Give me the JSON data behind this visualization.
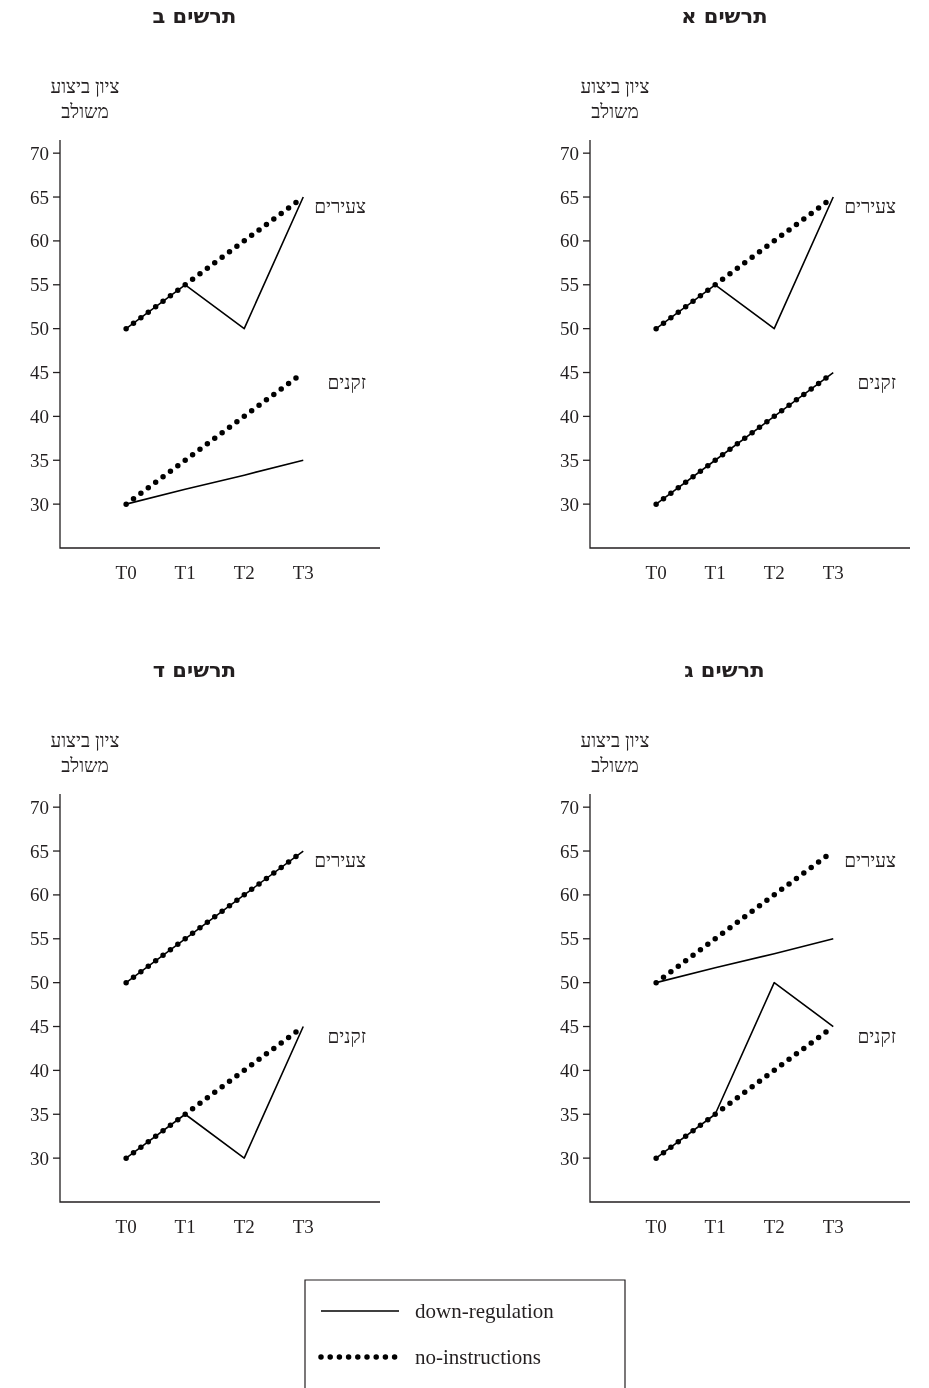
{
  "chart_data": [
    {
      "type": "line",
      "title": "תרשים א",
      "ylabel": "ציון ביצוע משולב",
      "categories": [
        "T0",
        "T1",
        "T2",
        "T3"
      ],
      "ylim": [
        25,
        71.5
      ],
      "yticks": [
        30,
        35,
        40,
        45,
        50,
        55,
        60,
        65,
        70
      ],
      "series": [
        {
          "color": "#000000",
          "line_style": "solid",
          "values": [
            50,
            55,
            50,
            65
          ]
        },
        {
          "color": "#000000",
          "line_style": "dotted",
          "values": [
            50,
            55,
            60,
            65
          ]
        },
        {
          "color": "#000000",
          "line_style": "solid",
          "values": [
            30,
            35,
            40,
            45
          ]
        },
        {
          "color": "#000000",
          "line_style": "dotted",
          "values": [
            30,
            35,
            40,
            45
          ]
        }
      ],
      "annotations": [
        "צעירים",
        "זקנים"
      ]
    },
    {
      "type": "line",
      "title": "תרשים ב",
      "ylabel": "ציון ביצוע משולב",
      "categories": [
        "T0",
        "T1",
        "T2",
        "T3"
      ],
      "ylim": [
        25,
        71.5
      ],
      "yticks": [
        30,
        35,
        40,
        45,
        50,
        55,
        60,
        65,
        70
      ],
      "series": [
        {
          "color": "#000000",
          "line_style": "solid",
          "values": [
            50,
            55,
            50,
            65
          ]
        },
        {
          "color": "#000000",
          "line_style": "dotted",
          "values": [
            50,
            55,
            60,
            65
          ]
        },
        {
          "color": "#000000",
          "line_style": "solid",
          "values": [
            30,
            31.7,
            33.3,
            35
          ]
        },
        {
          "color": "#000000",
          "line_style": "dotted",
          "values": [
            30,
            35,
            40,
            45
          ]
        }
      ],
      "annotations": [
        "צעירים",
        "זקנים"
      ]
    },
    {
      "type": "line",
      "title": "תרשים ג",
      "ylabel": "ציון ביצוע משולב",
      "categories": [
        "T0",
        "T1",
        "T2",
        "T3"
      ],
      "ylim": [
        25,
        71.5
      ],
      "yticks": [
        30,
        35,
        40,
        45,
        50,
        55,
        60,
        65,
        70
      ],
      "series": [
        {
          "color": "#000000",
          "line_style": "solid",
          "values": [
            50,
            51.7,
            53.3,
            55
          ]
        },
        {
          "color": "#000000",
          "line_style": "dotted",
          "values": [
            50,
            55,
            60,
            65
          ]
        },
        {
          "color": "#000000",
          "line_style": "solid",
          "values": [
            30,
            35,
            50,
            45
          ]
        },
        {
          "color": "#000000",
          "line_style": "dotted",
          "values": [
            30,
            35,
            40,
            45
          ]
        }
      ],
      "annotations": [
        "צעירים",
        "זקנים"
      ]
    },
    {
      "type": "line",
      "title": "תרשים ד",
      "ylabel": "ציון ביצוע משולב",
      "categories": [
        "T0",
        "T1",
        "T2",
        "T3"
      ],
      "ylim": [
        25,
        71.5
      ],
      "yticks": [
        30,
        35,
        40,
        45,
        50,
        55,
        60,
        65,
        70
      ],
      "legend": "bottom",
      "series": [
        {
          "name": "down-regulation",
          "color": "#000000",
          "line_style": "solid",
          "values": [
            50,
            55,
            60,
            65
          ]
        },
        {
          "name": "no-instructions",
          "color": "#000000",
          "line_style": "dotted",
          "values": [
            50,
            55,
            60,
            65
          ]
        },
        {
          "color": "#000000",
          "line_style": "solid",
          "values": [
            30,
            35,
            30,
            45
          ]
        },
        {
          "color": "#000000",
          "line_style": "dotted",
          "values": [
            30,
            35,
            40,
            45
          ]
        }
      ],
      "annotations": [
        "צעירים",
        "זקנים"
      ]
    }
  ]
}
